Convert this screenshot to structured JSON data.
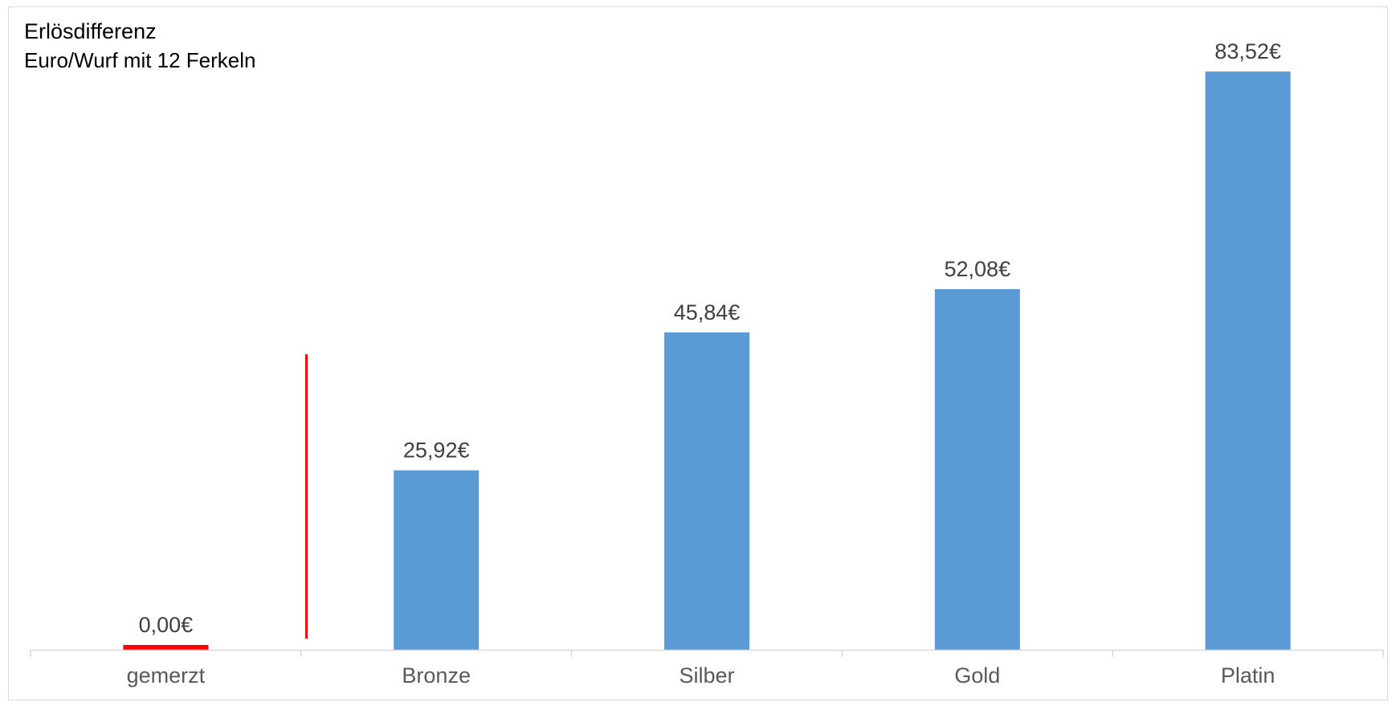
{
  "chart_data": {
    "type": "bar",
    "title": "Erlösdifferenz",
    "subtitle": "Euro/Wurf mit 12 Ferkeln",
    "categories": [
      "gemerzt",
      "Bronze",
      "Silber",
      "Gold",
      "Platin"
    ],
    "values": [
      0.0,
      25.92,
      45.84,
      52.08,
      83.52
    ],
    "data_labels": [
      "0,00€",
      "25,92€",
      "45,84€",
      "52,08€",
      "83,52€"
    ],
    "bar_colors": [
      "#ff0000",
      "#5b9bd5",
      "#5b9bd5",
      "#5b9bd5",
      "#5b9bd5"
    ],
    "ylim": [
      0,
      83.52
    ],
    "grid": false,
    "legend": "none",
    "xlabel": "",
    "ylabel": "",
    "annotations": [
      {
        "type": "vertical-line",
        "color": "#ff0000",
        "between": [
          "gemerzt",
          "Bronze"
        ]
      }
    ]
  }
}
